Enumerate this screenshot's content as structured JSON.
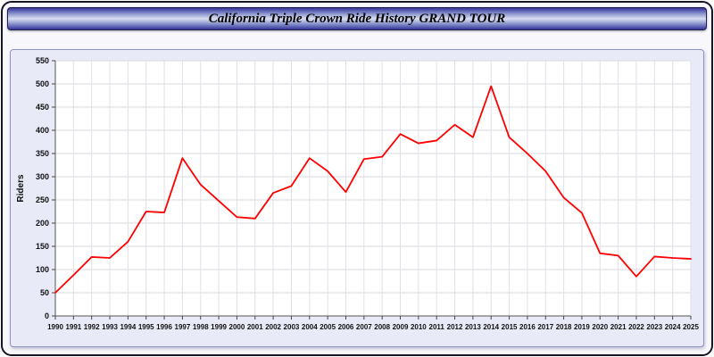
{
  "header": {
    "title": "California Triple Crown Ride History GRAND TOUR"
  },
  "chart_data": {
    "type": "line",
    "title": "California Triple Crown Ride History GRAND TOUR",
    "xlabel": "",
    "ylabel": "Riders",
    "ylim": [
      0,
      550
    ],
    "ytick_step": 50,
    "yticks": [
      0,
      50,
      100,
      150,
      200,
      250,
      300,
      350,
      400,
      450,
      500,
      550
    ],
    "grid": true,
    "legend": "none",
    "line_color": "#ff0000",
    "categories": [
      "1990",
      "1991",
      "1992",
      "1993",
      "1994",
      "1995",
      "1996",
      "1997",
      "1998",
      "1999",
      "2000",
      "2001",
      "2002",
      "2003",
      "2004",
      "2005",
      "2006",
      "2007",
      "2008",
      "2009",
      "2010",
      "2011",
      "2012",
      "2013",
      "2014",
      "2015",
      "2016",
      "2017",
      "2018",
      "2019",
      "2020",
      "2021",
      "2022",
      "2023",
      "2024",
      "2025"
    ],
    "series": [
      {
        "name": "Riders",
        "values": [
          50,
          88,
          127,
          125,
          160,
          225,
          223,
          340,
          283,
          248,
          213,
          210,
          265,
          280,
          340,
          312,
          267,
          338,
          343,
          392,
          372,
          378,
          412,
          385,
          495,
          385,
          350,
          312,
          255,
          222,
          135,
          130,
          85,
          128,
          125,
          123
        ]
      }
    ]
  }
}
